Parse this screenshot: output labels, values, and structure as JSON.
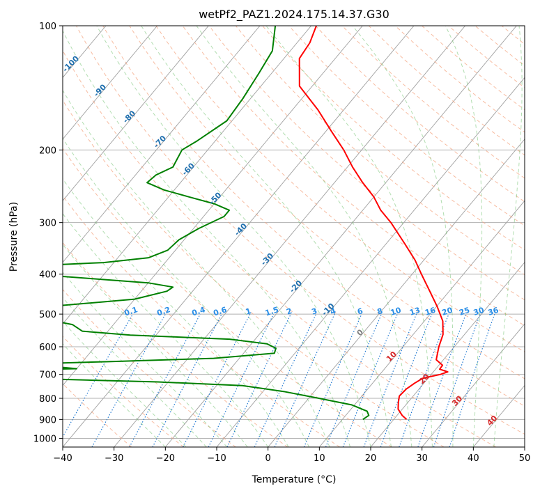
{
  "chart_data": {
    "type": "line",
    "title": "wetPf2_PAZ1.2024.175.14.37.G30",
    "xlabel": "Temperature (°C)",
    "ylabel": "Pressure (hPa)",
    "xlim": [
      -40,
      50
    ],
    "ylim": [
      1050,
      100
    ],
    "y_scale": "log",
    "skew": true,
    "grid": true,
    "x_ticks": [
      "−40",
      "−30",
      "−20",
      "−10",
      "0",
      "10",
      "20",
      "30",
      "40",
      "50"
    ],
    "y_ticks": [
      "100",
      "200",
      "300",
      "400",
      "500",
      "600",
      "700",
      "800",
      "900",
      "1000"
    ],
    "series": [
      {
        "color": "#ff0000",
        "values": [
          {
            "p": 900,
            "t": 22.5
          },
          {
            "p": 880,
            "t": 21
          },
          {
            "p": 850,
            "t": 19.2
          },
          {
            "p": 820,
            "t": 18.2
          },
          {
            "p": 790,
            "t": 17.3
          },
          {
            "p": 760,
            "t": 17.5
          },
          {
            "p": 735,
            "t": 18.2
          },
          {
            "p": 715,
            "t": 19.0
          },
          {
            "p": 700,
            "t": 21.8
          },
          {
            "p": 690,
            "t": 22.8
          },
          {
            "p": 680,
            "t": 20.8
          },
          {
            "p": 665,
            "t": 20.7
          },
          {
            "p": 645,
            "t": 18.6
          },
          {
            "p": 600,
            "t": 17.0
          },
          {
            "p": 560,
            "t": 15.8
          },
          {
            "p": 520,
            "t": 13.6
          },
          {
            "p": 480,
            "t": 10.2
          },
          {
            "p": 440,
            "t": 6.2
          },
          {
            "p": 400,
            "t": 1.8
          },
          {
            "p": 370,
            "t": -1.7
          },
          {
            "p": 340,
            "t": -6.0
          },
          {
            "p": 300,
            "t": -12.5
          },
          {
            "p": 280,
            "t": -16.5
          },
          {
            "p": 260,
            "t": -20.0
          },
          {
            "p": 240,
            "t": -24.5
          },
          {
            "p": 220,
            "t": -29.0
          },
          {
            "p": 200,
            "t": -33.5
          },
          {
            "p": 180,
            "t": -39.0
          },
          {
            "p": 160,
            "t": -45.0
          },
          {
            "p": 140,
            "t": -52.5
          },
          {
            "p": 120,
            "t": -57.0
          },
          {
            "p": 110,
            "t": -57.5
          },
          {
            "p": 100,
            "t": -59.0
          }
        ]
      },
      {
        "color": "#008000",
        "values": [
          {
            "p": 900,
            "t": 14.0
          },
          {
            "p": 880,
            "t": 14.5
          },
          {
            "p": 860,
            "t": 13.5
          },
          {
            "p": 830,
            "t": 9.5
          },
          {
            "p": 800,
            "t": 2.0
          },
          {
            "p": 770,
            "t": -6.0
          },
          {
            "p": 745,
            "t": -15.0
          },
          {
            "p": 730,
            "t": -32.0
          },
          {
            "p": 715,
            "t": -60.0
          },
          {
            "p": 702,
            "t": -85.0
          },
          {
            "p": 695,
            "t": -90.0
          },
          {
            "p": 688,
            "t": -75.0
          },
          {
            "p": 678,
            "t": -50.0
          },
          {
            "p": 670,
            "t": -55.0
          },
          {
            "p": 660,
            "t": -60.0
          },
          {
            "p": 652,
            "t": -45.0
          },
          {
            "p": 640,
            "t": -25.0
          },
          {
            "p": 622,
            "t": -14.0
          },
          {
            "p": 605,
            "t": -14.5
          },
          {
            "p": 590,
            "t": -17.0
          },
          {
            "p": 575,
            "t": -25.0
          },
          {
            "p": 562,
            "t": -45.0
          },
          {
            "p": 550,
            "t": -55.0
          },
          {
            "p": 530,
            "t": -58.0
          },
          {
            "p": 520,
            "t": -62.0
          },
          {
            "p": 510,
            "t": -90.0
          },
          {
            "p": 495,
            "t": -84.0
          },
          {
            "p": 480,
            "t": -66.0
          },
          {
            "p": 460,
            "t": -50.0
          },
          {
            "p": 440,
            "t": -45.0
          },
          {
            "p": 430,
            "t": -44.5
          },
          {
            "p": 420,
            "t": -50.0
          },
          {
            "p": 410,
            "t": -62.0
          },
          {
            "p": 395,
            "t": -80.0
          },
          {
            "p": 385,
            "t": -82.0
          },
          {
            "p": 375,
            "t": -62.0
          },
          {
            "p": 365,
            "t": -54.0
          },
          {
            "p": 350,
            "t": -51.5
          },
          {
            "p": 330,
            "t": -51.0
          },
          {
            "p": 310,
            "t": -49.0
          },
          {
            "p": 290,
            "t": -46.0
          },
          {
            "p": 280,
            "t": -46.0
          },
          {
            "p": 270,
            "t": -50.0
          },
          {
            "p": 260,
            "t": -56.0
          },
          {
            "p": 250,
            "t": -62.0
          },
          {
            "p": 240,
            "t": -66.5
          },
          {
            "p": 230,
            "t": -66.0
          },
          {
            "p": 220,
            "t": -64.0
          },
          {
            "p": 210,
            "t": -64.5
          },
          {
            "p": 200,
            "t": -65.0
          },
          {
            "p": 190,
            "t": -63.5
          },
          {
            "p": 170,
            "t": -61.0
          },
          {
            "p": 150,
            "t": -61.5
          },
          {
            "p": 130,
            "t": -62.5
          },
          {
            "p": 115,
            "t": -63.5
          },
          {
            "p": 100,
            "t": -67.0
          }
        ]
      }
    ],
    "dry_adiabat_labels": [
      "-100",
      "-90",
      "-80",
      "-70",
      "-60",
      "-50",
      "-40",
      "-30",
      "-20",
      "-10",
      "0",
      "10",
      "20",
      "30",
      "40"
    ],
    "mixing_ratio_labels": [
      "0.1",
      "0.2",
      "0.4",
      "0.6",
      "1",
      "1.5",
      "2",
      "3",
      "4",
      "6",
      "8",
      "10",
      "13",
      "16",
      "20",
      "25",
      "30",
      "36"
    ],
    "mixing_ratio_values": [
      0.1,
      0.2,
      0.4,
      0.6,
      1,
      1.5,
      2,
      3,
      4,
      6,
      8,
      10,
      13,
      16,
      20,
      25,
      30,
      36
    ],
    "colors": {
      "temperature": "#ff0000",
      "dewpoint": "#008000",
      "dry_adiabat": "#f4a582",
      "moist_adiabat": "#66bd63",
      "mixing_ratio": "#1f78d1",
      "isotherm": "#808080",
      "label_blue": "#1f6fae",
      "label_red": "#d62728",
      "label_gray": "#7f7f7f"
    }
  }
}
